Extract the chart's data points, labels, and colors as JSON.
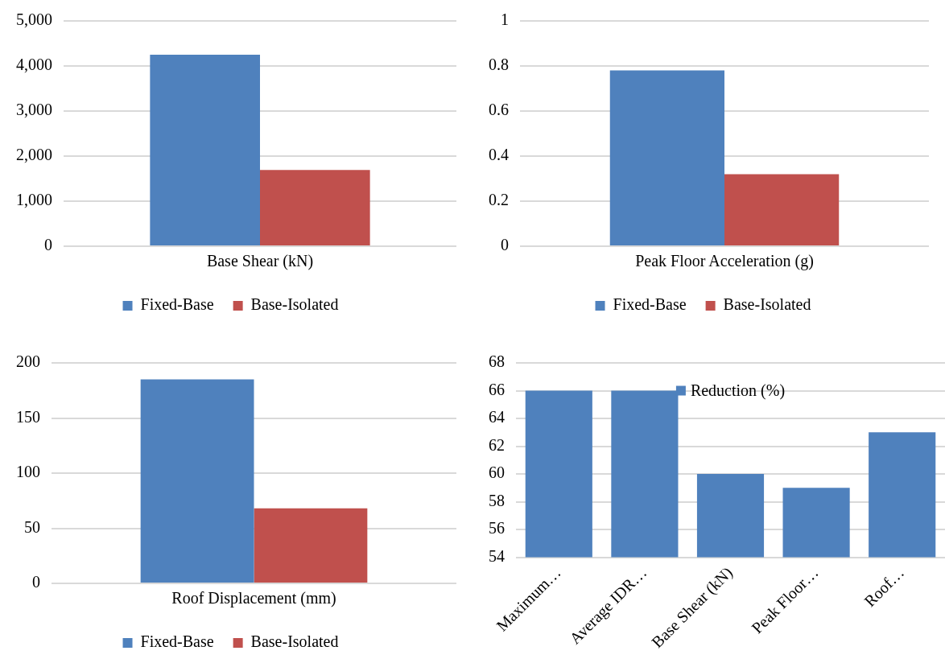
{
  "chart_data": [
    {
      "type": "bar",
      "categories": [
        "Base Shear (kN)"
      ],
      "series": [
        {
          "name": "Fixed-Base",
          "color": "#4f81bd",
          "values": [
            4250
          ]
        },
        {
          "name": "Base-Isolated",
          "color": "#c0504d",
          "values": [
            1690
          ]
        }
      ],
      "ylim": [
        0,
        5000
      ],
      "yticks": [
        {
          "value": 0,
          "label": "0"
        },
        {
          "value": 1000,
          "label": "1,000"
        },
        {
          "value": 2000,
          "label": "2,000"
        },
        {
          "value": 3000,
          "label": "3,000"
        },
        {
          "value": 4000,
          "label": "4,000"
        },
        {
          "value": 5000,
          "label": "5,000"
        }
      ],
      "grid": "y",
      "legend": "bottom"
    },
    {
      "type": "bar",
      "categories": [
        "Peak Floor Acceleration (g)"
      ],
      "series": [
        {
          "name": "Fixed-Base",
          "color": "#4f81bd",
          "values": [
            0.78
          ]
        },
        {
          "name": "Base-Isolated",
          "color": "#c0504d",
          "values": [
            0.32
          ]
        }
      ],
      "ylim": [
        0,
        1
      ],
      "yticks": [
        0,
        0.2,
        0.4,
        0.6,
        0.8,
        1
      ],
      "grid": "y",
      "legend": "bottom"
    },
    {
      "type": "bar",
      "categories": [
        "Roof Displacement (mm)"
      ],
      "series": [
        {
          "name": "Fixed-Base",
          "color": "#4f81bd",
          "values": [
            185
          ]
        },
        {
          "name": "Base-Isolated",
          "color": "#c0504d",
          "values": [
            68
          ]
        }
      ],
      "ylim": [
        0,
        200
      ],
      "yticks": [
        0,
        50,
        100,
        150,
        200
      ],
      "grid": "y",
      "legend": "bottom"
    },
    {
      "type": "bar",
      "categories": [
        "Maximum…",
        "Average IDR…",
        "Base Shear (kN)",
        "Peak Floor…",
        "Roof…"
      ],
      "series": [
        {
          "name": "Reduction (%)",
          "color": "#4f81bd",
          "values": [
            66,
            66,
            60,
            59,
            63
          ]
        }
      ],
      "ylim": [
        54,
        68
      ],
      "yticks": [
        54,
        56,
        58,
        60,
        62,
        64,
        66,
        68
      ],
      "grid": "y",
      "legend": "top"
    }
  ]
}
